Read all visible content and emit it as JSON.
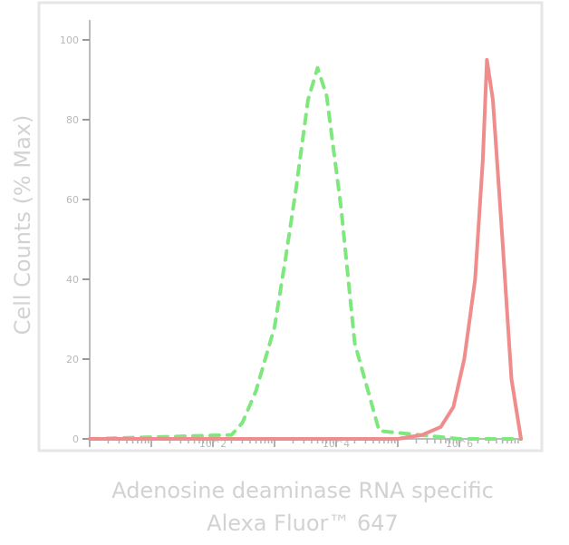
{
  "chart_data": {
    "type": "line",
    "title": "",
    "xlabel_line1": "Adenosine deaminase RNA specific",
    "xlabel_line2": "Alexa Fluor™ 647",
    "ylabel": "Cell Counts (% Max)",
    "right_label": "",
    "x_scale": "log",
    "xlim": [
      1,
      10000000
    ],
    "ylim": [
      0,
      105
    ],
    "y_ticks": [
      0,
      20,
      40,
      60,
      80,
      100
    ],
    "y_tick_labels": [
      "0",
      "20",
      "40",
      "60",
      "80",
      "100"
    ],
    "x_tick_labels": [
      "10^2",
      "10^4",
      "10^6"
    ],
    "grid": false,
    "legend": "none",
    "series": [
      {
        "style": "dashed",
        "color": "#7ee87e",
        "x": [
          1,
          200,
          300,
          500,
          1000,
          1500,
          2200,
          3500,
          5000,
          7000,
          12000,
          20000,
          50000,
          1000000,
          10000000
        ],
        "y": [
          0,
          1,
          4,
          12,
          28,
          45,
          62,
          85,
          93,
          86,
          58,
          24,
          2,
          0,
          0
        ]
      },
      {
        "style": "solid",
        "color": "#f08c8c",
        "x": [
          1,
          100000,
          250000,
          500000,
          800000,
          1200000,
          1800000,
          2400000,
          2800000,
          3500000,
          5000000,
          7000000,
          10000000
        ],
        "y": [
          0,
          0,
          1,
          3,
          8,
          20,
          40,
          70,
          95,
          85,
          50,
          15,
          0
        ]
      }
    ]
  }
}
